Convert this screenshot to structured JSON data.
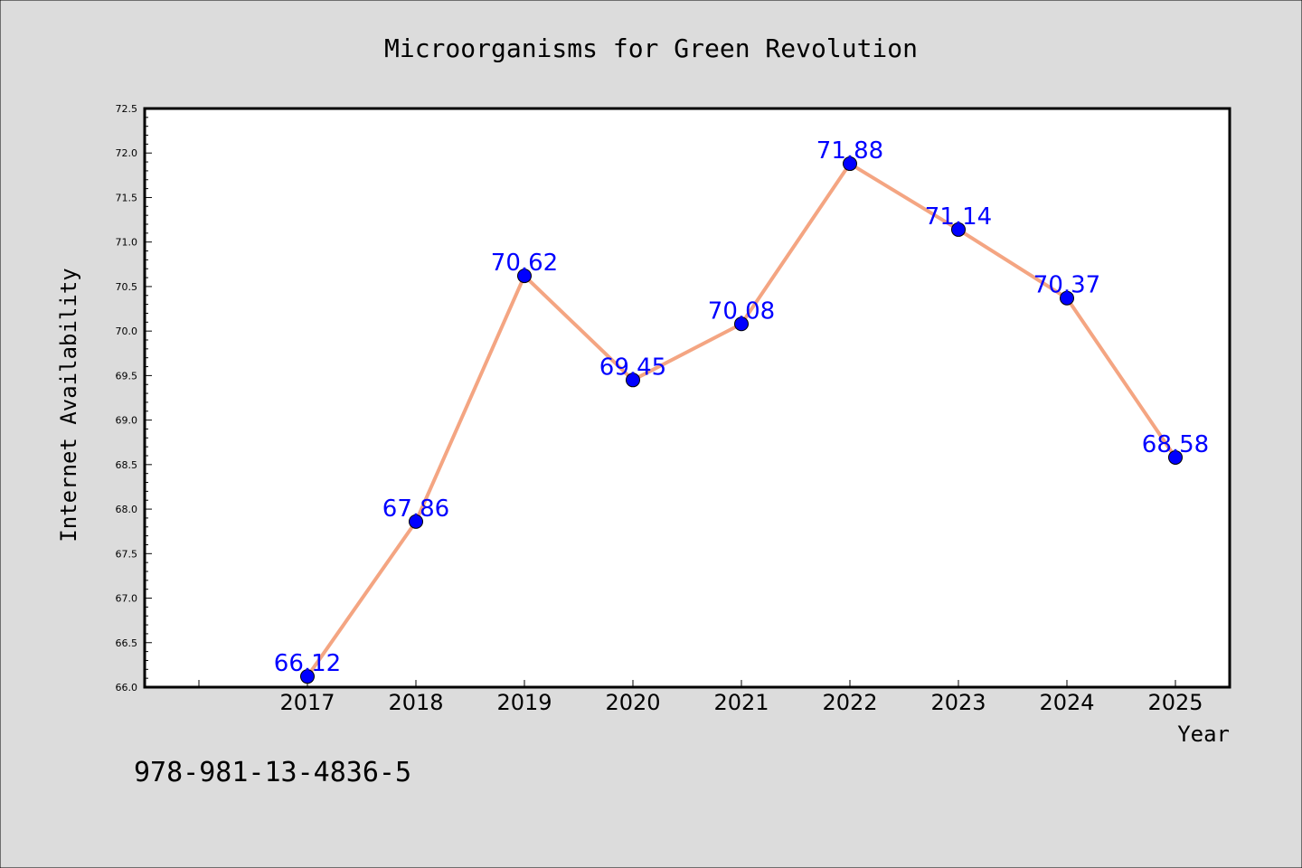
{
  "chart_data": {
    "type": "line",
    "title": "Microorganisms for Green Revolution",
    "xlabel": "Year",
    "ylabel": "Internet Availability",
    "categories": [
      "2017",
      "2018",
      "2019",
      "2020",
      "2021",
      "2022",
      "2023",
      "2024",
      "2025"
    ],
    "series": [
      {
        "values": [
          66.12,
          67.86,
          70.62,
          69.45,
          70.08,
          71.88,
          71.14,
          70.37,
          68.58
        ]
      }
    ],
    "data_labels": [
      "66.12",
      "67.86",
      "70.62",
      "69.45",
      "70.08",
      "71.88",
      "71.14",
      "70.37",
      "68.58"
    ],
    "ylim": [
      66.0,
      72.5
    ],
    "yticks": [
      "66.0",
      "66.5",
      "67.0",
      "67.5",
      "68.0",
      "68.5",
      "69.0",
      "69.5",
      "70.0",
      "70.5",
      "71.0",
      "71.5",
      "72.0",
      "72.5"
    ],
    "grid": false,
    "legend": "none"
  },
  "footer_text": "978-981-13-4836-5",
  "colors": {
    "background": "#dcdcdc",
    "plot_area": "#ffffff",
    "line": "#f4a582",
    "marker": "#0000ff",
    "data_label": "#0000ff"
  }
}
